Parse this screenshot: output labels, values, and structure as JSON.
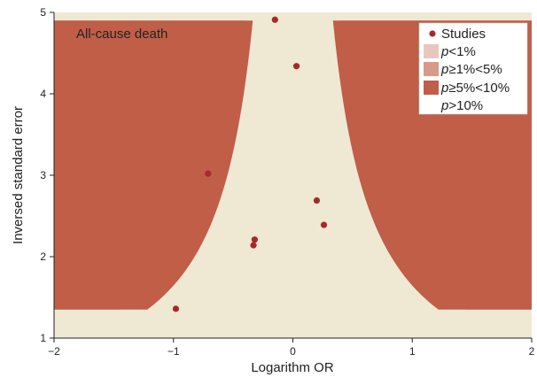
{
  "chart_data": {
    "type": "scatter",
    "title": "",
    "annotation": "All-cause death",
    "xlabel": "Logarithm OR",
    "ylabel": "Inversed standard error",
    "xlim": [
      -2,
      2
    ],
    "ylim": [
      1,
      5
    ],
    "xticks": [
      "−2",
      "−1",
      "0",
      "1",
      "2"
    ],
    "xtick_values": [
      -2,
      -1,
      0,
      1,
      2
    ],
    "yticks": [
      "1",
      "2",
      "3",
      "4",
      "5"
    ],
    "ytick_values": [
      1,
      2,
      3,
      4,
      5
    ],
    "contour_min_precision": 1.35,
    "contour_max_precision": 4.9,
    "series": [
      {
        "name": "Studies",
        "color": "#a52a2a",
        "points": [
          {
            "x": -0.15,
            "y": 4.91
          },
          {
            "x": 0.03,
            "y": 4.34
          },
          {
            "x": -0.71,
            "y": 3.02
          },
          {
            "x": 0.2,
            "y": 2.69
          },
          {
            "x": 0.26,
            "y": 2.39
          },
          {
            "x": -0.32,
            "y": 2.21
          },
          {
            "x": -0.33,
            "y": 2.14
          },
          {
            "x": -0.98,
            "y": 1.36
          }
        ]
      }
    ],
    "contours": [
      {
        "label": "p<1%",
        "z": 2.576,
        "color": "#e8c7bd"
      },
      {
        "label": "p≥1%<5%",
        "z": 1.96,
        "color": "#d69a86"
      },
      {
        "label": "p≥5%<10%",
        "z": 1.645,
        "color": "#c05e48"
      },
      {
        "label": "p>10%",
        "color": "#efe9d4"
      }
    ],
    "legend": {
      "position": "top-right",
      "entries": [
        {
          "marker": "dot",
          "label": "Studies"
        },
        {
          "marker": "swatch",
          "p": "p",
          "rest": "<1%"
        },
        {
          "marker": "swatch",
          "p": "p",
          "rest": "≥1%<5%"
        },
        {
          "marker": "swatch",
          "p": "p",
          "rest": "≥5%<10%"
        },
        {
          "marker": "none",
          "p": "p",
          "rest": ">10%"
        }
      ]
    },
    "grid": false
  }
}
